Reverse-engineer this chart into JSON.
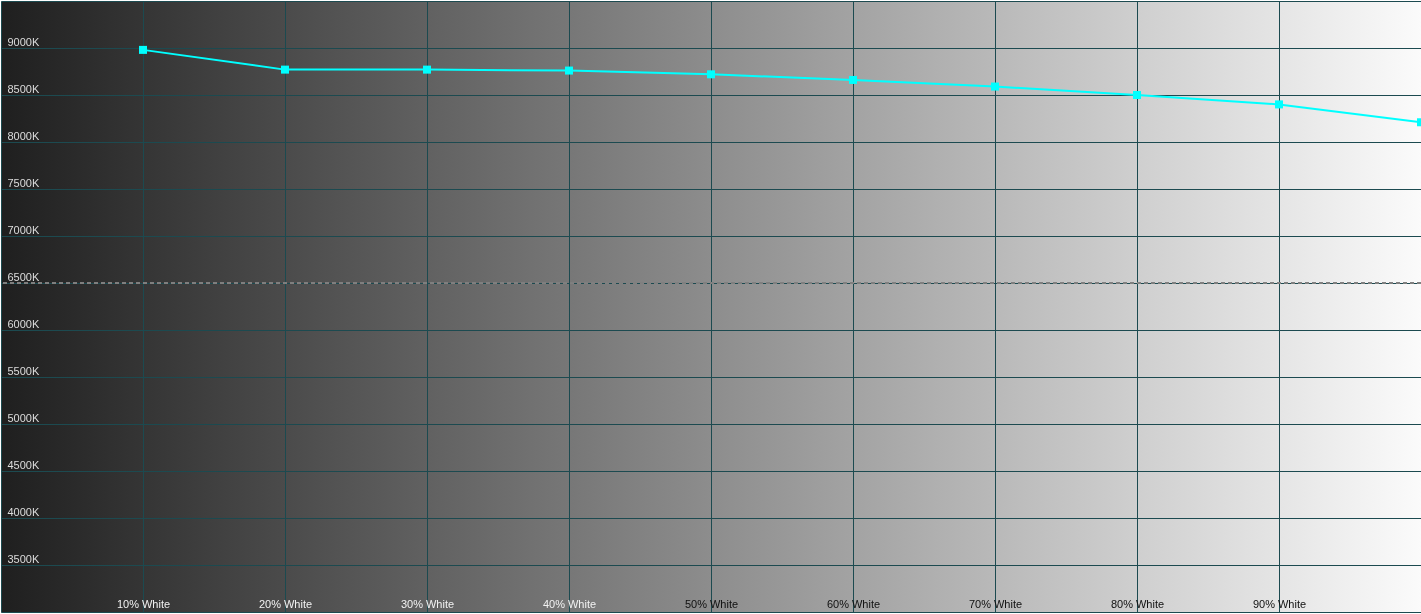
{
  "chart_data": {
    "type": "line",
    "x": [
      10,
      20,
      30,
      40,
      50,
      60,
      70,
      80,
      90,
      100
    ],
    "series": [
      {
        "color": "#00ffff",
        "values": [
          8980,
          8770,
          8770,
          8760,
          8720,
          8660,
          8590,
          8500,
          8400,
          8210
        ]
      }
    ],
    "xlim": [
      0,
      100
    ],
    "xticks": [
      {
        "value": 10,
        "label": "10% White"
      },
      {
        "value": 20,
        "label": "20% White"
      },
      {
        "value": 30,
        "label": "30% White"
      },
      {
        "value": 40,
        "label": "40% White"
      },
      {
        "value": 50,
        "label": "50% White"
      },
      {
        "value": 60,
        "label": "60% White"
      },
      {
        "value": 70,
        "label": "70% White"
      },
      {
        "value": 80,
        "label": "80% White"
      },
      {
        "value": 90,
        "label": "90% White"
      }
    ],
    "ylim": [
      3000,
      9500
    ],
    "yticks": [
      {
        "value": 3500,
        "label": "3500K"
      },
      {
        "value": 4000,
        "label": "4000K"
      },
      {
        "value": 4500,
        "label": "4500K"
      },
      {
        "value": 5000,
        "label": "5000K"
      },
      {
        "value": 5500,
        "label": "5500K"
      },
      {
        "value": 6000,
        "label": "6000K"
      },
      {
        "value": 6500,
        "label": "6500K"
      },
      {
        "value": 7000,
        "label": "7000K"
      },
      {
        "value": 7500,
        "label": "7500K"
      },
      {
        "value": 8000,
        "label": "8000K"
      },
      {
        "value": 8500,
        "label": "8500K"
      },
      {
        "value": 9000,
        "label": "9000K"
      }
    ],
    "grid": true,
    "marker": "square",
    "ref_lines": [
      {
        "axis": "y",
        "value": 6500,
        "line_style": "dashed"
      }
    ]
  }
}
